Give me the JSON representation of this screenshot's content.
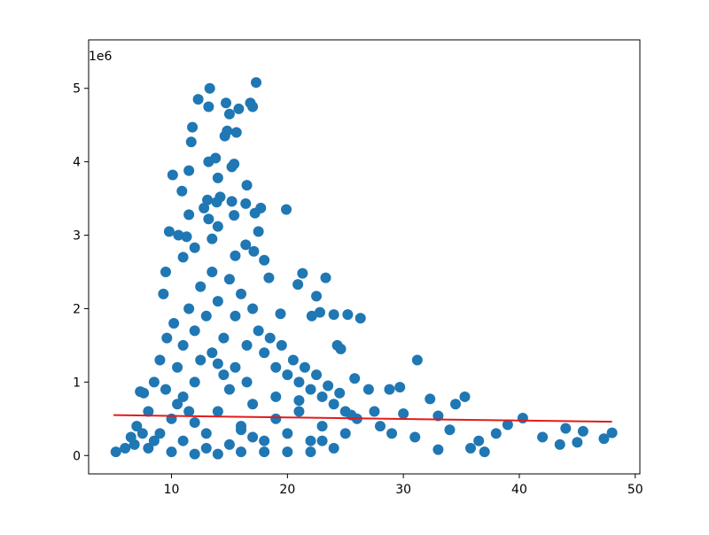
{
  "chart_data": {
    "type": "scatter",
    "offset_label": "1e6",
    "color": "#1f77b4",
    "x": [
      17.3,
      13.3,
      14.7,
      15.8,
      16.8,
      17,
      12.3,
      13.2,
      11.8,
      15,
      11.7,
      14.6,
      15.6,
      14.8,
      13.2,
      13.8,
      15.2,
      15.4,
      11.5,
      10.1,
      14,
      16.5,
      10.9,
      14.2,
      13.1,
      15.2,
      16.4,
      17.7,
      17.2,
      19.9,
      12.8,
      13.9,
      13.2,
      11.5,
      14,
      15.4,
      9.8,
      10.6,
      11.3,
      13.5,
      17.5,
      16.4,
      17.1,
      12,
      15.5,
      18,
      11,
      9.5,
      21.3,
      23.3,
      18.4,
      20.9,
      22.5,
      9.3,
      19.4,
      22.1,
      22.8,
      24,
      25.2,
      26.3,
      31.2,
      24.3,
      24.6,
      27,
      28.8,
      29.7,
      25.8,
      32.3,
      35.3,
      34.5,
      7.3,
      7.6,
      30,
      33,
      40.3,
      47.3,
      48,
      45,
      43.5,
      45.5,
      44,
      42,
      39,
      38,
      36.5,
      37,
      35.8,
      33,
      34,
      31,
      29,
      28,
      27.5,
      26,
      5.2,
      6,
      6.5,
      7,
      8,
      8.5,
      9,
      9.6,
      10.2,
      10.5,
      11,
      11.5,
      12,
      12.5,
      13,
      13.5,
      14,
      14.5,
      15,
      15.5,
      16,
      16.5,
      17,
      17.5,
      18,
      18.5,
      19,
      19.5,
      20,
      20.5,
      21,
      21.5,
      22,
      22.5,
      23,
      23.5,
      24,
      24.5,
      25,
      25.5,
      8,
      9,
      10,
      11,
      12,
      13,
      14,
      15,
      16,
      17,
      18,
      19,
      20,
      21,
      22,
      23,
      24,
      25,
      10,
      12,
      14,
      16,
      18,
      20,
      22,
      12.5,
      13.5,
      14.5,
      11.5,
      15.5,
      16.5,
      9.5,
      10.5,
      7.5,
      8.5,
      6.8,
      11,
      13,
      15,
      17,
      19,
      21,
      23,
      12,
      14,
      16
    ],
    "values": [
      5.08,
      5.0,
      4.8,
      4.72,
      4.8,
      4.75,
      4.85,
      4.75,
      4.47,
      4.65,
      4.27,
      4.35,
      4.4,
      4.42,
      4.0,
      4.05,
      3.93,
      3.97,
      3.88,
      3.82,
      3.78,
      3.68,
      3.6,
      3.52,
      3.48,
      3.46,
      3.43,
      3.37,
      3.3,
      3.35,
      3.37,
      3.45,
      3.22,
      3.28,
      3.12,
      3.27,
      3.05,
      3.0,
      2.98,
      2.95,
      3.05,
      2.87,
      2.78,
      2.83,
      2.72,
      2.66,
      2.7,
      2.5,
      2.48,
      2.42,
      2.42,
      2.33,
      2.17,
      2.2,
      1.93,
      1.9,
      1.95,
      1.92,
      1.92,
      1.87,
      1.3,
      1.5,
      1.45,
      0.9,
      0.9,
      0.93,
      1.05,
      0.77,
      0.8,
      0.7,
      0.87,
      0.85,
      0.57,
      0.54,
      0.51,
      0.23,
      0.31,
      0.18,
      0.15,
      0.33,
      0.37,
      0.25,
      0.42,
      0.3,
      0.2,
      0.05,
      0.1,
      0.08,
      0.35,
      0.25,
      0.3,
      0.4,
      0.6,
      0.5,
      0.05,
      0.1,
      0.25,
      0.4,
      0.6,
      1.0,
      1.3,
      1.6,
      1.8,
      1.2,
      1.5,
      2.0,
      1.7,
      2.3,
      1.9,
      2.5,
      2.1,
      1.6,
      2.4,
      1.9,
      2.2,
      1.5,
      2.0,
      1.7,
      1.4,
      1.6,
      1.2,
      1.5,
      1.1,
      1.3,
      1.0,
      1.2,
      0.9,
      1.1,
      0.8,
      0.95,
      0.7,
      0.85,
      0.6,
      0.55,
      0.1,
      0.3,
      0.5,
      0.8,
      1.0,
      0.3,
      0.6,
      0.9,
      0.4,
      0.7,
      0.2,
      0.5,
      0.3,
      0.6,
      0.2,
      0.4,
      0.1,
      0.3,
      0.05,
      0.02,
      0.02,
      0.05,
      0.05,
      0.05,
      0.05,
      1.3,
      1.4,
      1.1,
      0.6,
      1.2,
      1.0,
      0.9,
      0.7,
      0.3,
      0.2,
      0.15,
      0.2,
      0.1,
      0.15,
      0.25,
      0.8,
      0.75,
      0.2,
      0.45,
      1.25,
      0.35
    ],
    "trend": {
      "x": [
        5,
        48
      ],
      "values": [
        0.55,
        0.46
      ],
      "color": "#e41a1c"
    },
    "xlim": [
      2.85,
      50.4
    ],
    "ylim": [
      -0.25,
      5.66
    ],
    "xticks": [
      10,
      20,
      30,
      40,
      50
    ],
    "yticks": [
      0,
      1,
      2,
      3,
      4,
      5
    ]
  }
}
